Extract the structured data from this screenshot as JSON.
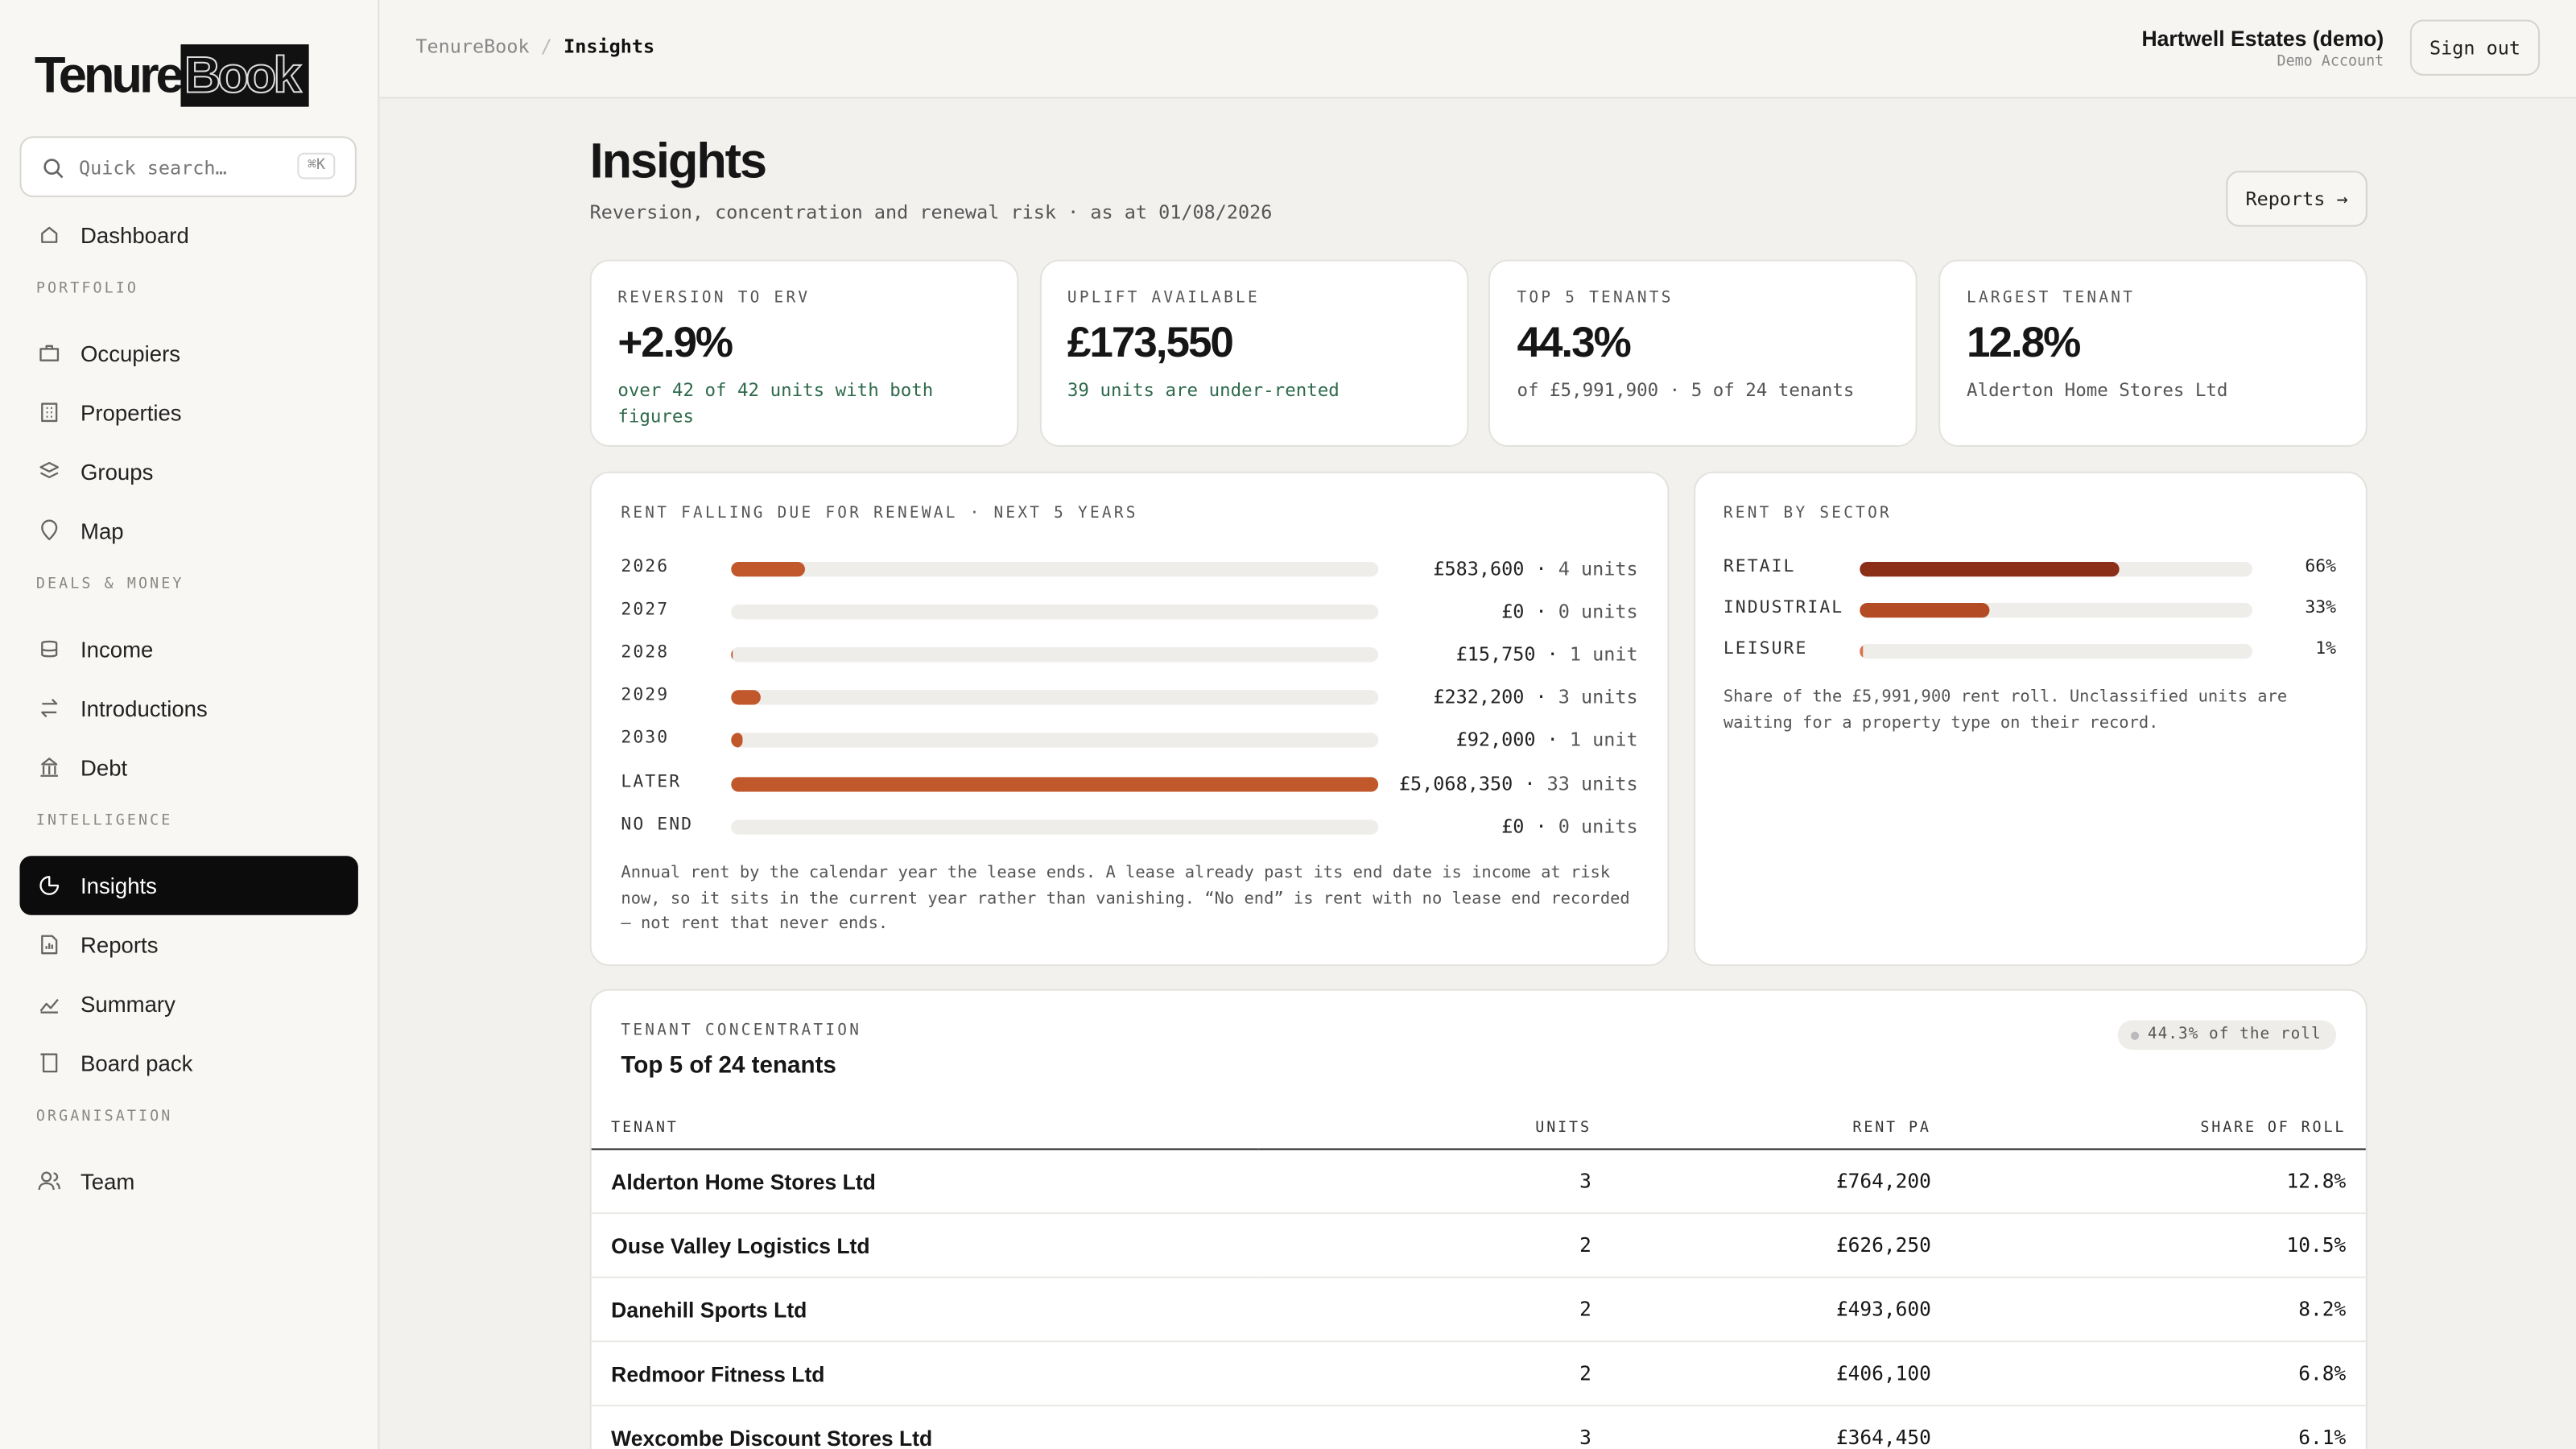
{
  "brand": {
    "first": "Tenure",
    "second": "Book"
  },
  "search": {
    "placeholder": "Quick search…",
    "shortcut": "⌘K"
  },
  "nav": [
    {
      "items": [
        {
          "label": "Dashboard"
        }
      ]
    },
    {
      "section": "PORTFOLIO",
      "items": [
        {
          "label": "Occupiers"
        },
        {
          "label": "Properties"
        },
        {
          "label": "Groups"
        },
        {
          "label": "Map"
        }
      ]
    },
    {
      "section": "DEALS & MONEY",
      "items": [
        {
          "label": "Income"
        },
        {
          "label": "Introductions"
        },
        {
          "label": "Debt"
        }
      ]
    },
    {
      "section": "INTELLIGENCE",
      "items": [
        {
          "label": "Insights",
          "active": true
        },
        {
          "label": "Reports"
        },
        {
          "label": "Summary"
        },
        {
          "label": "Board pack"
        }
      ]
    },
    {
      "section": "ORGANISATION",
      "items": [
        {
          "label": "Team"
        }
      ]
    }
  ],
  "header": {
    "breadcrumb": [
      "TenureBook",
      "Insights"
    ],
    "account": "Hartwell Estates (demo)",
    "account_type": "Demo Account",
    "sign_out": "Sign out"
  },
  "page": {
    "title": "Insights",
    "subtitle": "Reversion, concentration and renewal risk · as at 01/08/2026",
    "reports_button": "Reports →"
  },
  "kpis": [
    {
      "label": "REVERSION TO ERV",
      "value": "+2.9%",
      "note": "over 42 of 42 units with both figures",
      "note_color": "#2e6a4c"
    },
    {
      "label": "UPLIFT AVAILABLE",
      "value": "£173,550",
      "note": "39 units are under-rented",
      "note_color": "#2e6a4c"
    },
    {
      "label": "TOP 5 TENANTS",
      "value": "44.3%",
      "note": "of £5,991,900 · 5 of 24 tenants",
      "note_color": "#555555"
    },
    {
      "label": "LARGEST TENANT",
      "value": "12.8%",
      "note": "Alderton Home Stores Ltd",
      "note_color": "#555555"
    }
  ],
  "renewals": {
    "title": "RENT FALLING DUE FOR RENEWAL · NEXT 5 YEARS",
    "color": "#c0582c",
    "rows": [
      {
        "year": "2026",
        "rent": 583600,
        "rent_label": "£583,600",
        "units": "4 units"
      },
      {
        "year": "2027",
        "rent": 0,
        "rent_label": "£0",
        "units": "0 units"
      },
      {
        "year": "2028",
        "rent": 15750,
        "rent_label": "£15,750",
        "units": "1 unit"
      },
      {
        "year": "2029",
        "rent": 232200,
        "rent_label": "£232,200",
        "units": "3 units"
      },
      {
        "year": "2030",
        "rent": 92000,
        "rent_label": "£92,000",
        "units": "1 unit"
      },
      {
        "year": "LATER",
        "rent": 5068350,
        "rent_label": "£5,068,350",
        "units": "33 units"
      },
      {
        "year": "NO END",
        "rent": 0,
        "rent_label": "£0",
        "units": "0 units"
      }
    ],
    "note": "Annual rent by the calendar year the lease ends. A lease already past its end date is income at risk now, so it sits in the current year rather than vanishing. “No end” is rent with no lease end recorded — not rent that never ends."
  },
  "sectors": {
    "title": "RENT BY SECTOR",
    "rows": [
      {
        "name": "RETAIL",
        "share": 66,
        "share_label": "66%",
        "color": "#8b2f18"
      },
      {
        "name": "INDUSTRIAL",
        "share": 33,
        "share_label": "33%",
        "color": "#b34b25"
      },
      {
        "name": "LEISURE",
        "share": 1,
        "share_label": "1%",
        "color": "#d9734a"
      }
    ],
    "note": "Share of the £5,991,900 rent roll. Unclassified units are waiting for a property type on their record."
  },
  "concentration": {
    "eyebrow": "TENANT CONCENTRATION",
    "title": "Top 5 of 24 tenants",
    "badge": "44.3% of the roll",
    "columns": [
      "TENANT",
      "UNITS",
      "RENT PA",
      "SHARE OF ROLL"
    ],
    "rows": [
      [
        "Alderton Home Stores Ltd",
        "3",
        "£764,200",
        "12.8%"
      ],
      [
        "Ouse Valley Logistics Ltd",
        "2",
        "£626,250",
        "10.5%"
      ],
      [
        "Danehill Sports Ltd",
        "2",
        "£493,600",
        "8.2%"
      ],
      [
        "Redmoor Fitness Ltd",
        "2",
        "£406,100",
        "6.8%"
      ],
      [
        "Wexcombe Discount Stores Ltd",
        "3",
        "£364,450",
        "6.1%"
      ]
    ]
  }
}
